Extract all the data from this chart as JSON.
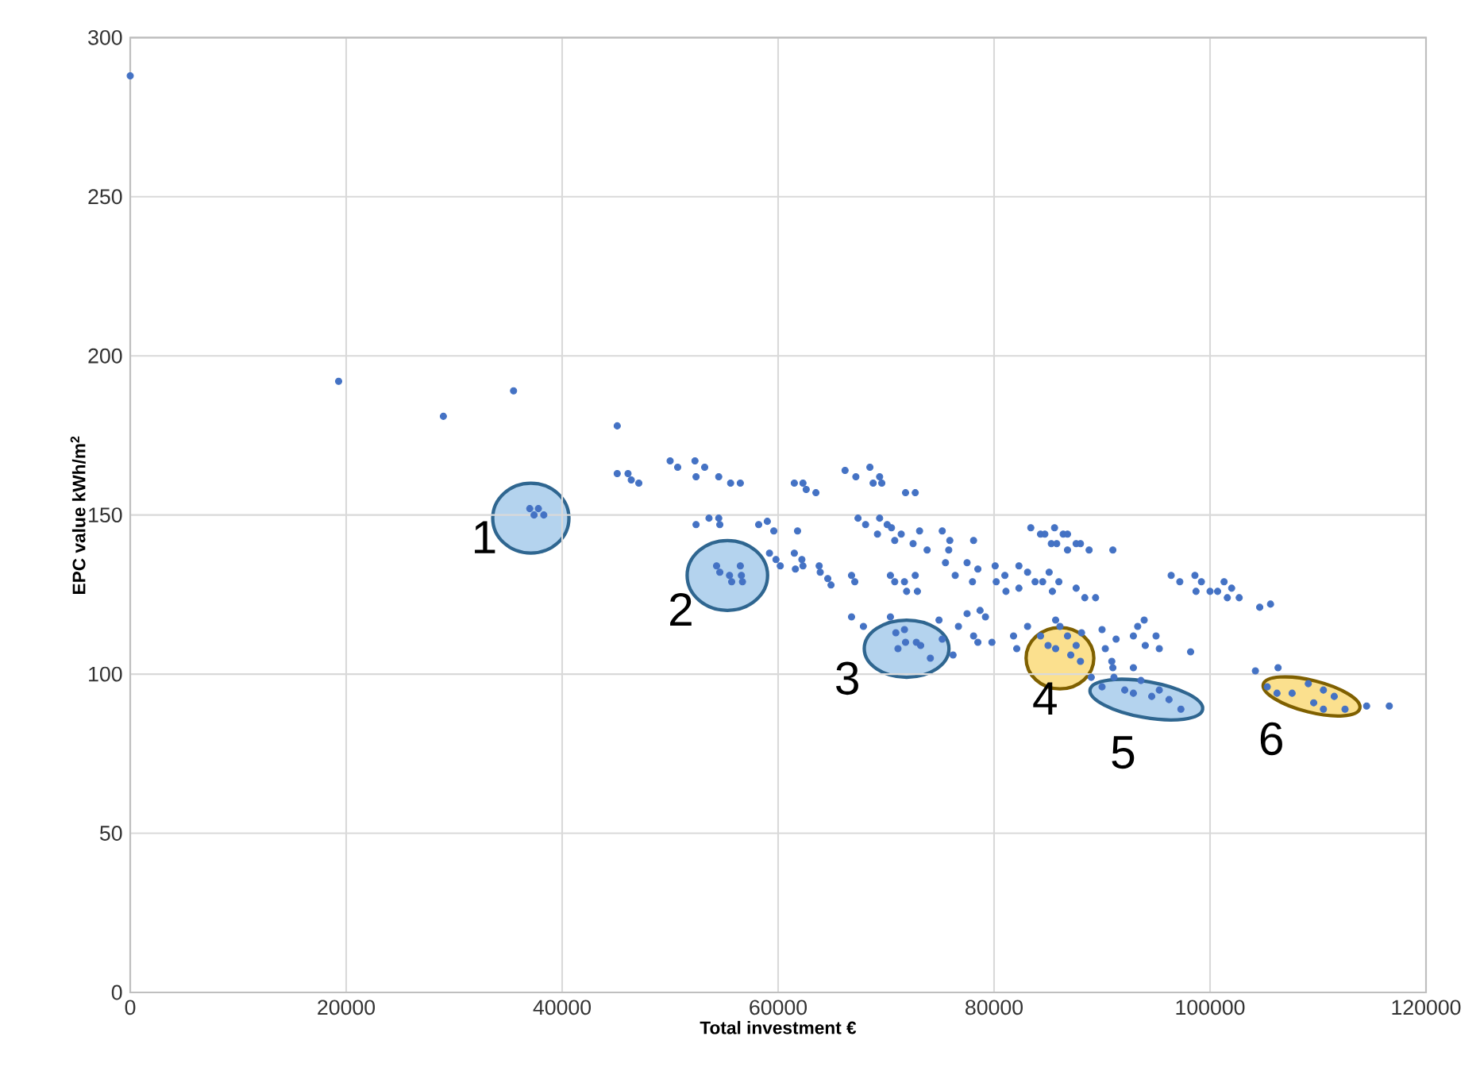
{
  "chart_data": {
    "type": "scatter",
    "xlabel": "Total investment €",
    "ylabel": "EPC value kWh/m$^{2}$",
    "xlim": [
      0,
      120000
    ],
    "ylim": [
      0,
      300
    ],
    "xticks": [
      0,
      20000,
      40000,
      60000,
      80000,
      100000,
      120000
    ],
    "yticks": [
      0,
      50,
      100,
      150,
      200,
      250,
      300
    ],
    "grid": true,
    "series": [
      {
        "color": "#4472c4",
        "x": [
          0,
          19300,
          29000,
          35500,
          37000,
          37400,
          37800,
          38300,
          45100,
          45100,
          46100,
          46400,
          47100,
          50000,
          50700,
          52300,
          53200,
          52400,
          54500,
          55600,
          56500,
          52400,
          53600,
          54500,
          54600,
          54300,
          54600,
          55500,
          55700,
          56500,
          56600,
          56700,
          58200,
          59000,
          59600,
          61800,
          61500,
          62300,
          62600,
          63500,
          59200,
          59800,
          60200,
          61500,
          62200,
          61600,
          62300,
          63800,
          63900,
          64600,
          64900,
          66800,
          67100,
          66200,
          67200,
          68500,
          69400,
          68800,
          69600,
          71800,
          72700,
          67400,
          68100,
          69400,
          70100,
          70500,
          69200,
          70800,
          71400,
          73100,
          72500,
          73800,
          75200,
          75900,
          78100,
          75800,
          70400,
          70800,
          71700,
          71900,
          72700,
          72900,
          75500,
          76400,
          77500,
          78500,
          78000,
          80100,
          81000,
          80200,
          81100,
          82300,
          83100,
          82300,
          83800,
          84500,
          85100,
          85400,
          86000,
          87600,
          88400,
          89400,
          83400,
          84300,
          84700,
          85600,
          85300,
          85800,
          86400,
          86800,
          87600,
          88000,
          86800,
          88800,
          91000,
          66800,
          67900,
          70400,
          70900,
          71700,
          71800,
          72800,
          73200,
          74100,
          71100,
          74900,
          75200,
          76200,
          76700,
          77500,
          78700,
          79200,
          78100,
          78500,
          79800,
          81800,
          82100,
          83100,
          84300,
          85000,
          85700,
          86100,
          86800,
          87600,
          87100,
          88000,
          88100,
          85700,
          90000,
          90300,
          91300,
          90900,
          91000,
          89000,
          90000,
          91100,
          92100,
          92900,
          92900,
          93300,
          93900,
          94000,
          95000,
          95300,
          93600,
          94600,
          96200,
          97300,
          98200,
          92900,
          95300,
          96400,
          97200,
          98600,
          99200,
          98700,
          100000,
          100700,
          101300,
          102000,
          101600,
          102700,
          104600,
          105600,
          104200,
          106300,
          105300,
          106200,
          107600,
          109100,
          109600,
          110500,
          111500,
          110500,
          112500,
          114500,
          116600
        ],
        "values": [
          288,
          192,
          181,
          189,
          152,
          150,
          152,
          150,
          178,
          163,
          163,
          161,
          160,
          167,
          165,
          167,
          165,
          162,
          162,
          160,
          160,
          147,
          149,
          149,
          147,
          134,
          132,
          131,
          129,
          134,
          131,
          129,
          147,
          148,
          145,
          145,
          160,
          160,
          158,
          157,
          138,
          136,
          134,
          138,
          136,
          133,
          134,
          134,
          132,
          130,
          128,
          131,
          129,
          164,
          162,
          165,
          162,
          160,
          160,
          157,
          157,
          149,
          147,
          149,
          147,
          146,
          144,
          142,
          144,
          145,
          141,
          139,
          145,
          142,
          142,
          139,
          131,
          129,
          129,
          126,
          131,
          126,
          135,
          131,
          135,
          133,
          129,
          134,
          131,
          129,
          126,
          134,
          132,
          127,
          129,
          129,
          132,
          126,
          129,
          127,
          124,
          124,
          146,
          144,
          144,
          146,
          141,
          141,
          144,
          144,
          141,
          141,
          139,
          139,
          139,
          118,
          115,
          118,
          113,
          114,
          110,
          110,
          109,
          105,
          108,
          117,
          111,
          106,
          115,
          119,
          120,
          118,
          112,
          110,
          110,
          112,
          108,
          115,
          112,
          109,
          117,
          115,
          112,
          109,
          106,
          104,
          113,
          108,
          114,
          108,
          111,
          104,
          102,
          99,
          96,
          99,
          95,
          102,
          112,
          115,
          117,
          109,
          112,
          108,
          98,
          93,
          92,
          89,
          107,
          94,
          95,
          131,
          129,
          131,
          129,
          126,
          126,
          126,
          129,
          127,
          124,
          124,
          121,
          122,
          101,
          102,
          96,
          94,
          94,
          97,
          91,
          95,
          93,
          89,
          89,
          90,
          90
        ]
      }
    ],
    "annotations": [
      {
        "text": "1",
        "x": 37100,
        "y": 149
      },
      {
        "text": "2",
        "x": 55300,
        "y": 131
      },
      {
        "text": "3",
        "x": 71900,
        "y": 108
      },
      {
        "text": "4",
        "x": 86100,
        "y": 105
      },
      {
        "text": "5",
        "x": 94100,
        "y": 92
      },
      {
        "text": "6",
        "x": 109400,
        "y": 93
      }
    ]
  }
}
